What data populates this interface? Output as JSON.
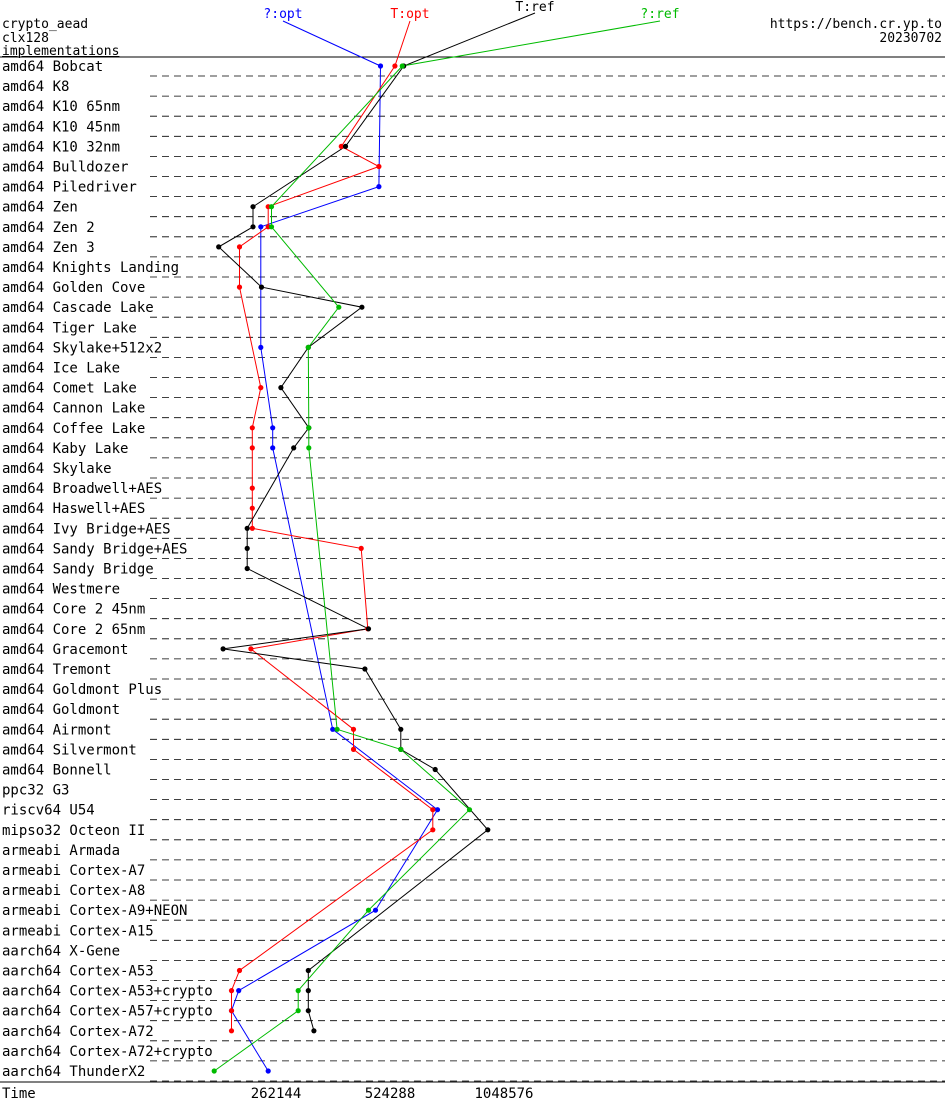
{
  "header": {
    "left_lines": [
      "crypto_aead",
      "clx128",
      "implementations"
    ],
    "right_lines": [
      "https://bench.cr.yp.to",
      "20230702"
    ]
  },
  "chart_data": {
    "type": "line",
    "xlabel": "Time",
    "x_scale": "log2",
    "x_ticks": [
      262144,
      524288,
      1048576
    ],
    "x_tick_labels": [
      "262144",
      "524288",
      "1048576"
    ],
    "categories": [
      "amd64 Bobcat",
      "amd64 K8",
      "amd64 K10 65nm",
      "amd64 K10 45nm",
      "amd64 K10 32nm",
      "amd64 Bulldozer",
      "amd64 Piledriver",
      "amd64 Zen",
      "amd64 Zen 2",
      "amd64 Zen 3",
      "amd64 Knights Landing",
      "amd64 Golden Cove",
      "amd64 Cascade Lake",
      "amd64 Tiger Lake",
      "amd64 Skylake+512x2",
      "amd64 Ice Lake",
      "amd64 Comet Lake",
      "amd64 Cannon Lake",
      "amd64 Coffee Lake",
      "amd64 Kaby Lake",
      "amd64 Skylake",
      "amd64 Broadwell+AES",
      "amd64 Haswell+AES",
      "amd64 Ivy Bridge+AES",
      "amd64 Sandy Bridge+AES",
      "amd64 Sandy Bridge",
      "amd64 Westmere",
      "amd64 Core 2 45nm",
      "amd64 Core 2 65nm",
      "amd64 Gracemont",
      "amd64 Tremont",
      "amd64 Goldmont Plus",
      "amd64 Goldmont",
      "amd64 Airmont",
      "amd64 Silvermont",
      "amd64 Bonnell",
      "ppc32 G3",
      "riscv64 U54",
      "mipso32 Octeon II",
      "armeabi Armada",
      "armeabi Cortex-A7",
      "armeabi Cortex-A8",
      "armeabi Cortex-A9+NEON",
      "armeabi Cortex-A15",
      "aarch64 X-Gene",
      "aarch64 Cortex-A53",
      "aarch64 Cortex-A53+crypto",
      "aarch64 Cortex-A57+crypto",
      "aarch64 Cortex-A72",
      "aarch64 Cortex-A72+crypto",
      "aarch64 ThunderX2"
    ],
    "series": [
      {
        "name": "?:opt",
        "color": "#0000ff",
        "values": [
          495000,
          null,
          null,
          null,
          null,
          null,
          490000,
          null,
          239000,
          null,
          null,
          null,
          null,
          null,
          239000,
          null,
          null,
          null,
          257000,
          257000,
          null,
          null,
          null,
          null,
          null,
          null,
          null,
          null,
          null,
          null,
          null,
          null,
          null,
          370000,
          null,
          null,
          null,
          700000,
          null,
          null,
          null,
          null,
          480000,
          null,
          null,
          null,
          209000,
          200000,
          null,
          null,
          250000
        ]
      },
      {
        "name": "T:opt",
        "color": "#ff0000",
        "values": [
          540000,
          null,
          null,
          null,
          390000,
          490000,
          null,
          250000,
          250000,
          210000,
          null,
          210000,
          null,
          null,
          null,
          null,
          239000,
          null,
          227000,
          227000,
          null,
          227000,
          227000,
          227000,
          440000,
          null,
          null,
          null,
          458000,
          225000,
          null,
          null,
          null,
          420000,
          420000,
          null,
          null,
          680000,
          680000,
          null,
          null,
          null,
          null,
          null,
          null,
          210000,
          200000,
          200000,
          200000,
          null,
          null
        ]
      },
      {
        "name": "T:ref",
        "color": "#000000",
        "values": [
          570000,
          null,
          null,
          null,
          400000,
          null,
          null,
          228000,
          228000,
          185000,
          null,
          240000,
          442000,
          null,
          319000,
          null,
          270000,
          null,
          320000,
          292000,
          null,
          null,
          null,
          220000,
          220000,
          220000,
          null,
          null,
          460000,
          190000,
          450000,
          null,
          null,
          560000,
          560000,
          690000,
          null,
          null,
          950000,
          null,
          null,
          null,
          null,
          null,
          null,
          319000,
          319000,
          319000,
          330000,
          null,
          null
        ]
      },
      {
        "name": "?:ref",
        "color": "#00bb00",
        "values": [
          565000,
          null,
          null,
          null,
          null,
          null,
          null,
          255000,
          255000,
          null,
          null,
          null,
          384000,
          null,
          319000,
          null,
          null,
          null,
          320000,
          320000,
          null,
          null,
          null,
          null,
          null,
          null,
          null,
          null,
          null,
          null,
          null,
          null,
          null,
          380000,
          560000,
          null,
          null,
          850000,
          null,
          null,
          null,
          null,
          460000,
          null,
          null,
          null,
          300000,
          300000,
          null,
          null,
          180000
        ]
      }
    ]
  }
}
